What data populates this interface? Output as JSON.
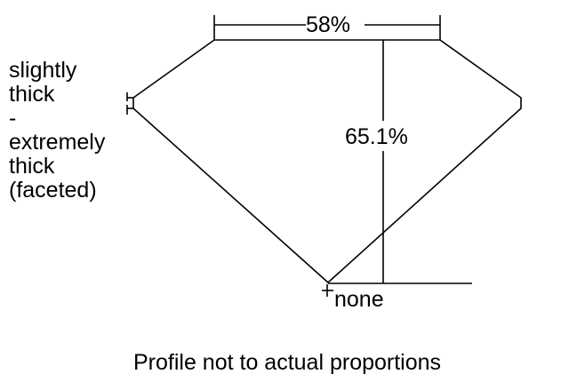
{
  "diagram": {
    "table_percent": "58%",
    "depth_percent": "65.1%",
    "girdle_label": [
      "slightly",
      "thick",
      "-",
      "extremely",
      "thick",
      "(faceted)"
    ],
    "culet_label": "none",
    "caption": "Profile not to actual proportions",
    "line_color": "#000000"
  }
}
